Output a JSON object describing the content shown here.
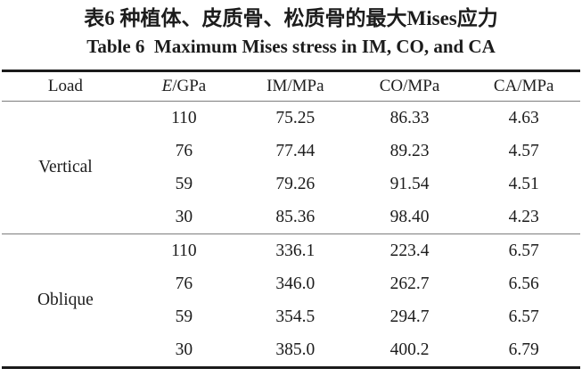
{
  "titles": {
    "chinese": "表6 种植体、皮质骨、松质骨的最大Mises应力",
    "english": "Table 6  Maximum Mises stress in IM, CO, and CA"
  },
  "colors": {
    "background": "#ffffff",
    "text": "#1c1c1c",
    "heavy_rule": "#1b1b1b",
    "light_rule": "#7d7d7d"
  },
  "chart_data": {
    "type": "table",
    "title": "Table 6  Maximum Mises stress in IM, CO, and CA",
    "columns": [
      "Load",
      "E/GPa",
      "IM/MPa",
      "CO/MPa",
      "CA/MPa"
    ],
    "rows": [
      [
        "Vertical",
        110,
        75.25,
        86.33,
        4.63
      ],
      [
        "Vertical",
        76,
        77.44,
        89.23,
        4.57
      ],
      [
        "Vertical",
        59,
        79.26,
        91.54,
        4.51
      ],
      [
        "Vertical",
        30,
        85.36,
        98.4,
        4.23
      ],
      [
        "Oblique",
        110,
        336.1,
        223.4,
        6.57
      ],
      [
        "Oblique",
        76,
        346.0,
        262.7,
        6.56
      ],
      [
        "Oblique",
        59,
        354.5,
        294.7,
        6.57
      ],
      [
        "Oblique",
        30,
        385.0,
        400.2,
        6.79
      ]
    ]
  },
  "table": {
    "columns": [
      {
        "italic": "",
        "text": "Load"
      },
      {
        "italic": "E",
        "text": "/GPa"
      },
      {
        "italic": "",
        "text": "IM/MPa"
      },
      {
        "italic": "",
        "text": "CO/MPa"
      },
      {
        "italic": "",
        "text": "CA/MPa"
      }
    ],
    "groups": [
      {
        "load": "Vertical",
        "rows": [
          {
            "e": "110",
            "im": "75.25",
            "co": "86.33",
            "ca": "4.63"
          },
          {
            "e": "76",
            "im": "77.44",
            "co": "89.23",
            "ca": "4.57"
          },
          {
            "e": "59",
            "im": "79.26",
            "co": "91.54",
            "ca": "4.51"
          },
          {
            "e": "30",
            "im": "85.36",
            "co": "98.40",
            "ca": "4.23"
          }
        ]
      },
      {
        "load": "Oblique",
        "rows": [
          {
            "e": "110",
            "im": "336.1",
            "co": "223.4",
            "ca": "6.57"
          },
          {
            "e": "76",
            "im": "346.0",
            "co": "262.7",
            "ca": "6.56"
          },
          {
            "e": "59",
            "im": "354.5",
            "co": "294.7",
            "ca": "6.57"
          },
          {
            "e": "30",
            "im": "385.0",
            "co": "400.2",
            "ca": "6.79"
          }
        ]
      }
    ]
  }
}
